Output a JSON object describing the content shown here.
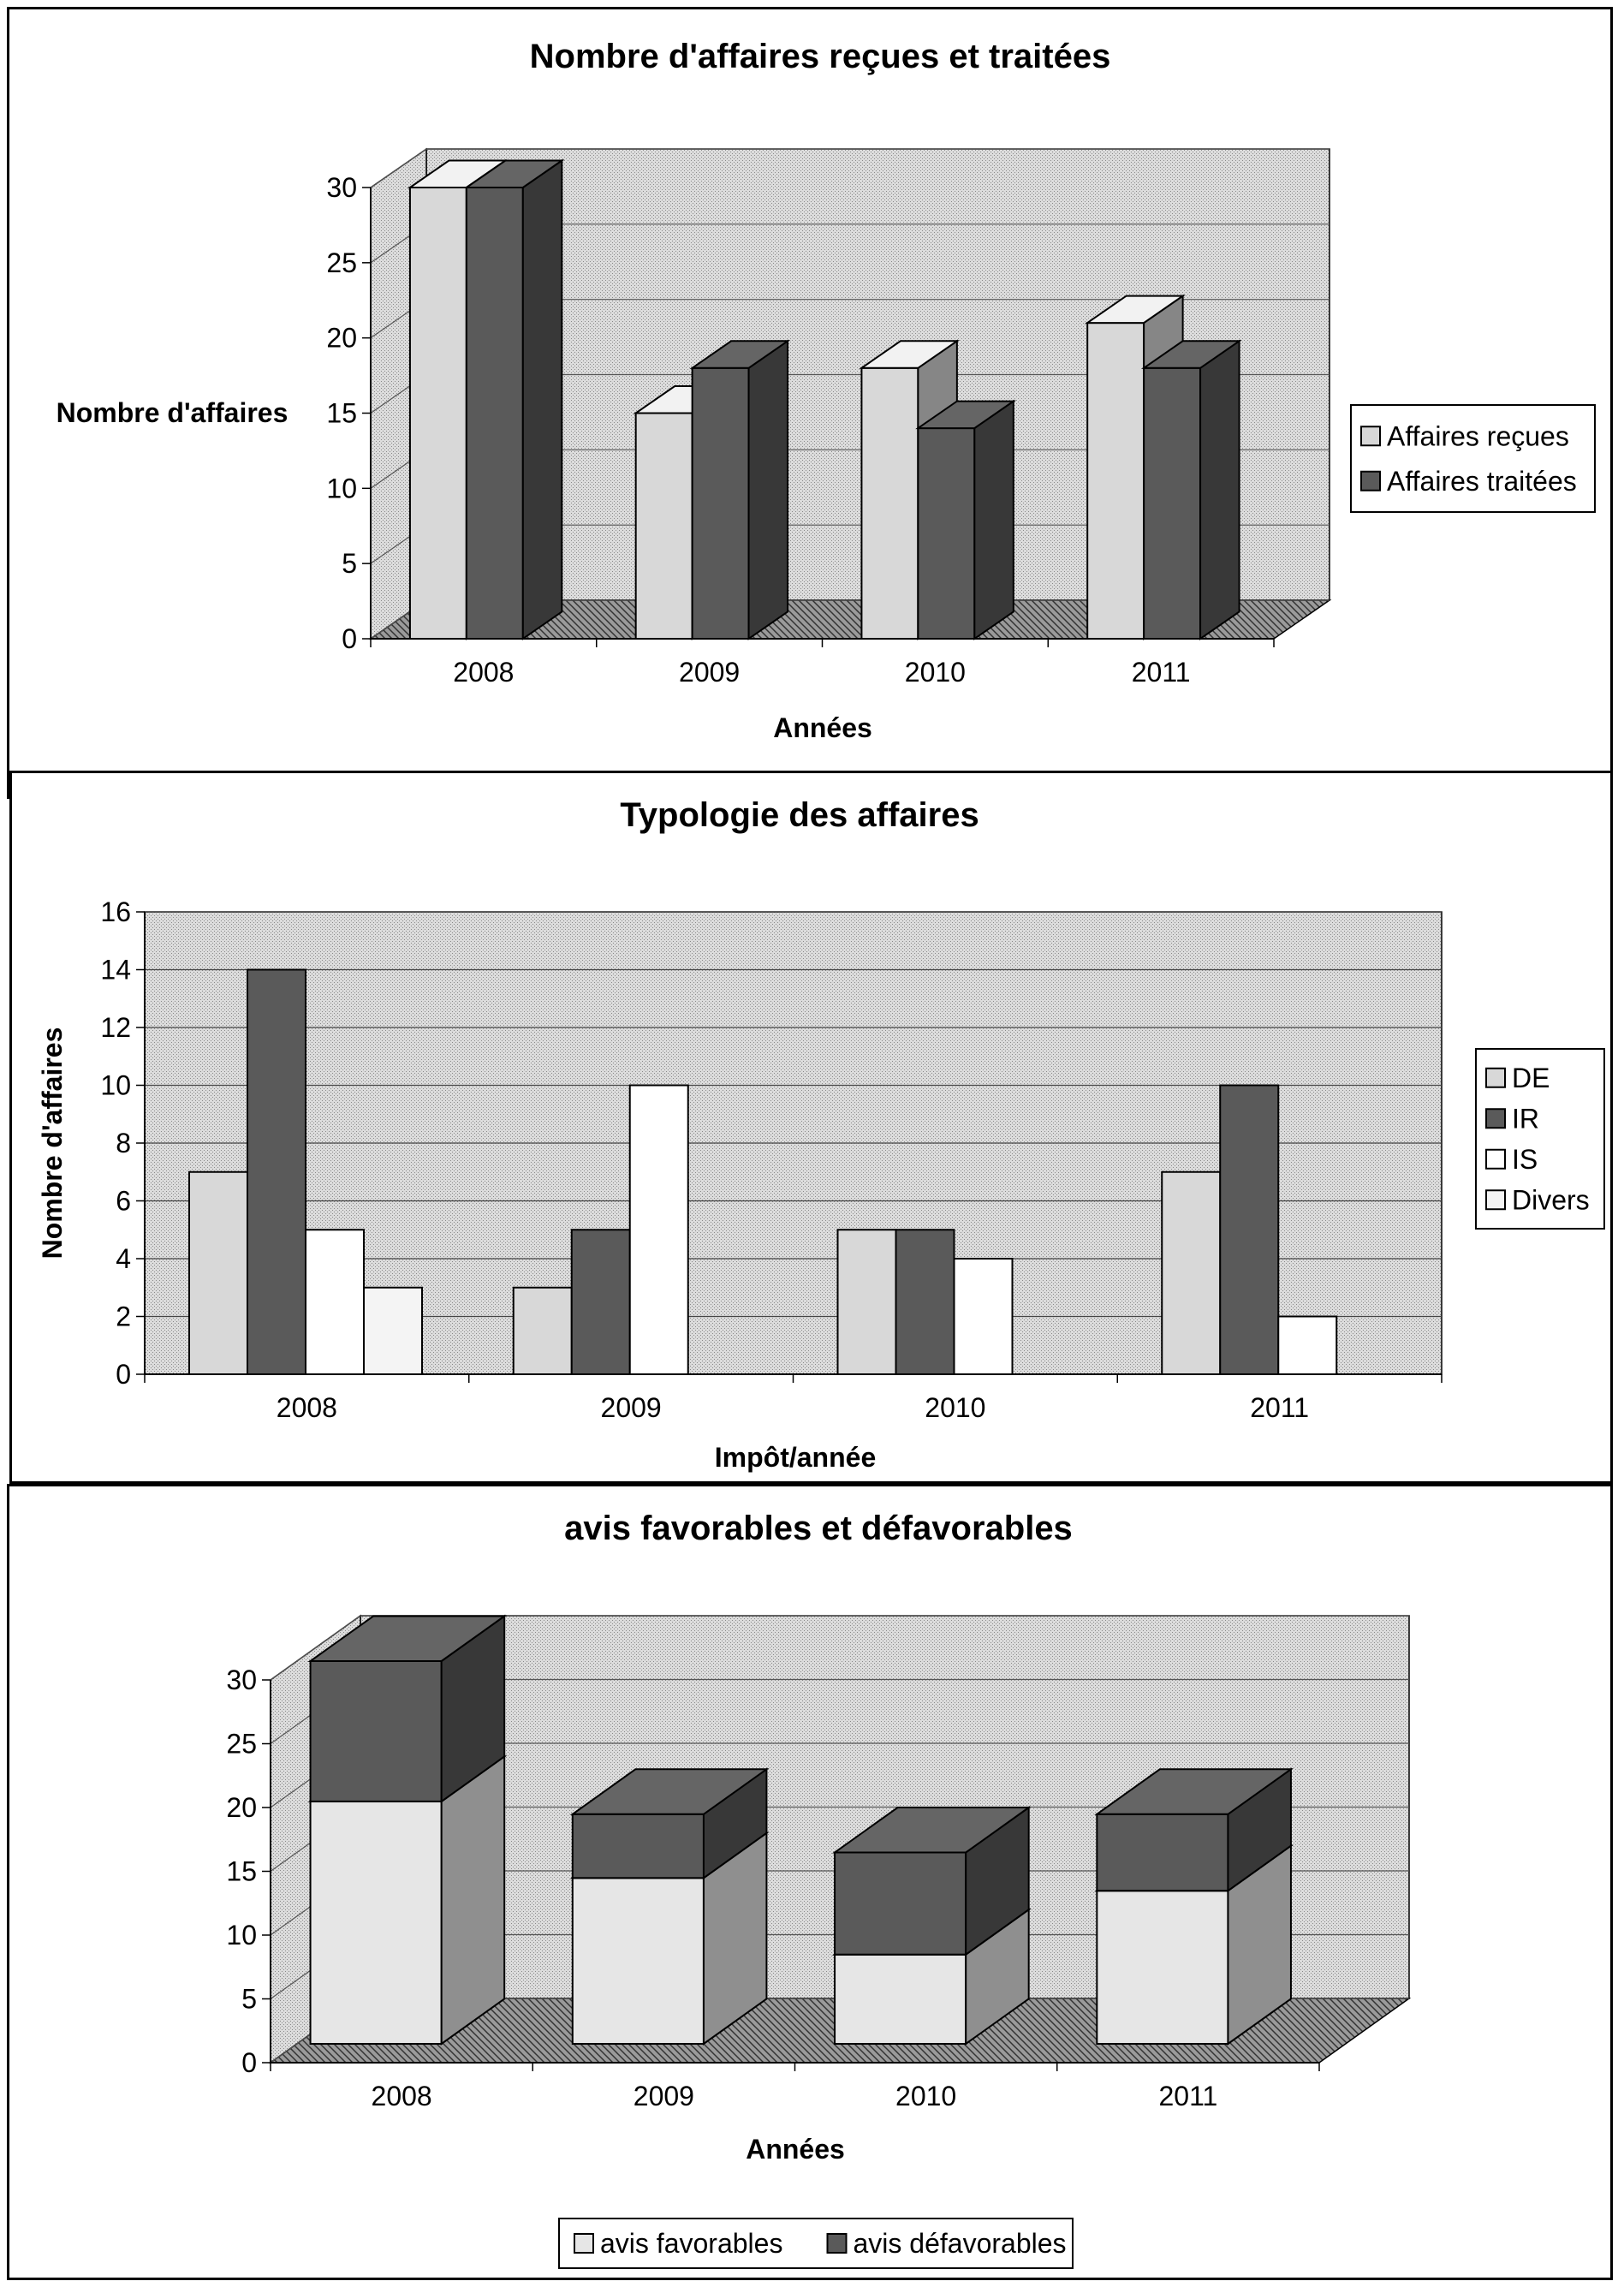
{
  "chart_data": [
    {
      "type": "bar",
      "style": "3d-clustered",
      "title": "Nombre d'affaires reçues et traitées",
      "xlabel": "Années",
      "ylabel": "Nombre d'affaires",
      "categories": [
        "2008",
        "2009",
        "2010",
        "2011"
      ],
      "series": [
        {
          "name": "Affaires reçues",
          "values": [
            30,
            15,
            18,
            21
          ],
          "color": "#d8d8d8"
        },
        {
          "name": "Affaires traitées",
          "values": [
            30,
            18,
            14,
            18
          ],
          "color": "#5a5a5a"
        }
      ],
      "ylim": [
        0,
        30
      ],
      "yticks": [
        0,
        5,
        10,
        15,
        20,
        25,
        30
      ],
      "grid": true,
      "legend": "right"
    },
    {
      "type": "bar",
      "style": "clustered",
      "title": "Typologie des affaires",
      "xlabel": "Impôt/année",
      "ylabel": "Nombre d'affaires",
      "categories": [
        "2008",
        "2009",
        "2010",
        "2011"
      ],
      "series": [
        {
          "name": "DE",
          "values": [
            7,
            3,
            5,
            7
          ],
          "color": "#d8d8d8"
        },
        {
          "name": "IR",
          "values": [
            14,
            5,
            5,
            10
          ],
          "color": "#5a5a5a"
        },
        {
          "name": "IS",
          "values": [
            5,
            10,
            4,
            2
          ],
          "color": "#ffffff"
        },
        {
          "name": "Divers",
          "values": [
            3,
            0,
            0,
            0
          ],
          "color": "#f4f4f4"
        }
      ],
      "ylim": [
        0,
        16
      ],
      "yticks": [
        0,
        2,
        4,
        6,
        8,
        10,
        12,
        14,
        16
      ],
      "grid": true,
      "legend": "right"
    },
    {
      "type": "bar",
      "style": "3d-stacked",
      "title": "avis favorables et défavorables",
      "xlabel": "Années",
      "ylabel": "",
      "categories": [
        "2008",
        "2009",
        "2010",
        "2011"
      ],
      "series": [
        {
          "name": "avis favorables",
          "values": [
            19,
            13,
            7,
            12
          ],
          "color": "#e6e6e6"
        },
        {
          "name": "avis défavorables",
          "values": [
            11,
            5,
            8,
            6
          ],
          "color": "#5a5a5a"
        }
      ],
      "ylim": [
        0,
        30
      ],
      "yticks": [
        0,
        5,
        10,
        15,
        20,
        25,
        30
      ],
      "grid": true,
      "legend": "bottom"
    }
  ]
}
